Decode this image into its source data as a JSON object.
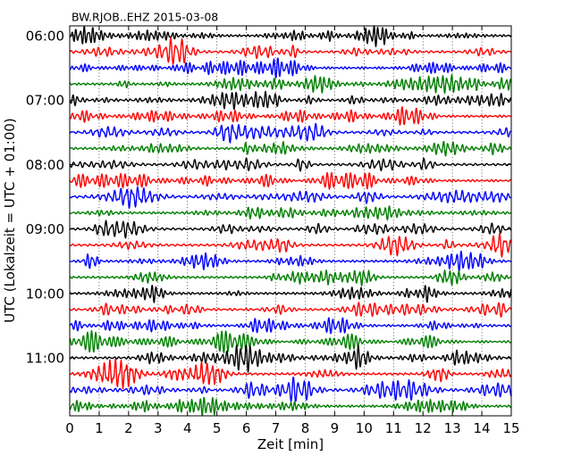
{
  "chart_data": {
    "type": "line",
    "plot_kind": "dayplot",
    "title": "BW.RJOB..EHZ 2015-03-08",
    "xlabel": "Zeit  [min]",
    "ylabel": "UTC (Lokalzeit = UTC + 01:00)",
    "xlim": [
      0,
      15
    ],
    "x_ticks": [
      0,
      1,
      2,
      3,
      4,
      5,
      6,
      7,
      8,
      9,
      10,
      11,
      12,
      13,
      14,
      15
    ],
    "x_tick_labels": [
      "0",
      "1",
      "2",
      "3",
      "4",
      "5",
      "6",
      "7",
      "8",
      "9",
      "10",
      "11",
      "12",
      "13",
      "14",
      "15"
    ],
    "y_tick_labels": [
      "06:00",
      "07:00",
      "08:00",
      "09:00",
      "10:00",
      "11:00"
    ],
    "rows_per_hour": 4,
    "row_count": 24,
    "trace_colors": [
      "#000000",
      "#ff0000",
      "#0000ff",
      "#007f00"
    ],
    "grid": {
      "x": true,
      "y": false,
      "style": "dotted"
    }
  }
}
